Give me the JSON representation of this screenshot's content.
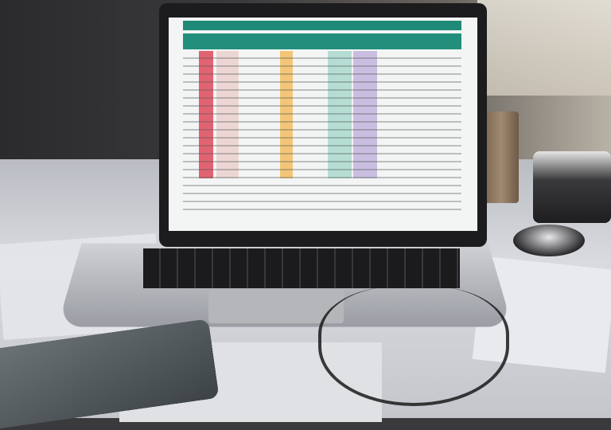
{
  "scene": {
    "subject": "",
    "colors": {
      "sheet_header": "#1f8a78",
      "highlight_red": "#d9253a",
      "highlight_orange": "#f4b140",
      "highlight_purple": "#b7a6d6",
      "highlight_teal": "#9bd3c4"
    }
  }
}
